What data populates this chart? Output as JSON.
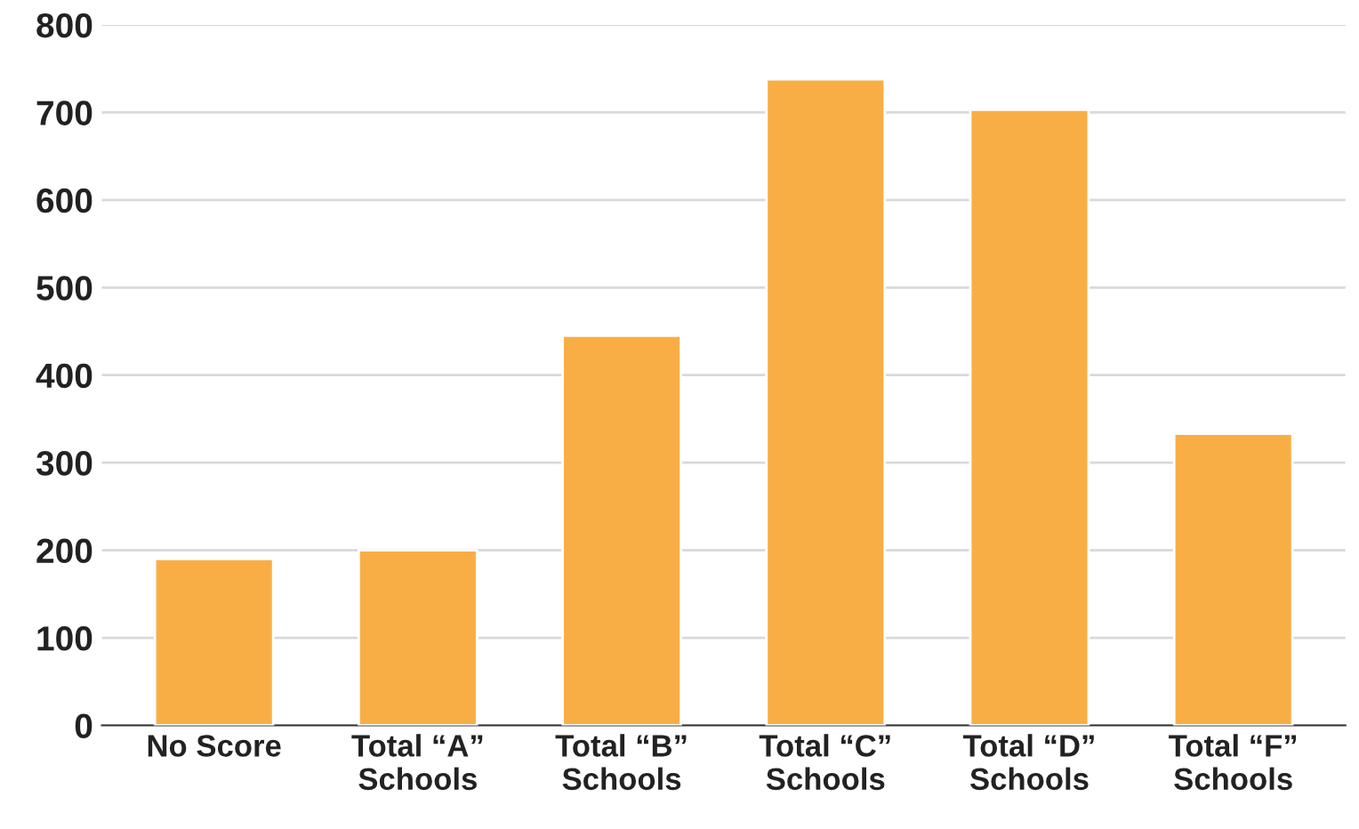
{
  "chart_data": {
    "type": "bar",
    "categories": [
      "No Score",
      "Total “A”\nSchools",
      "Total “B”\nSchools",
      "Total “C”\nSchools",
      "Total “D”\nSchools",
      "Total “F”\nSchools"
    ],
    "values": [
      190,
      200,
      445,
      738,
      703,
      333
    ],
    "color": "#f9ae45",
    "ylim": [
      0,
      800
    ],
    "yticks": [
      0,
      100,
      200,
      300,
      400,
      500,
      600,
      700,
      800
    ],
    "grid": "y"
  }
}
